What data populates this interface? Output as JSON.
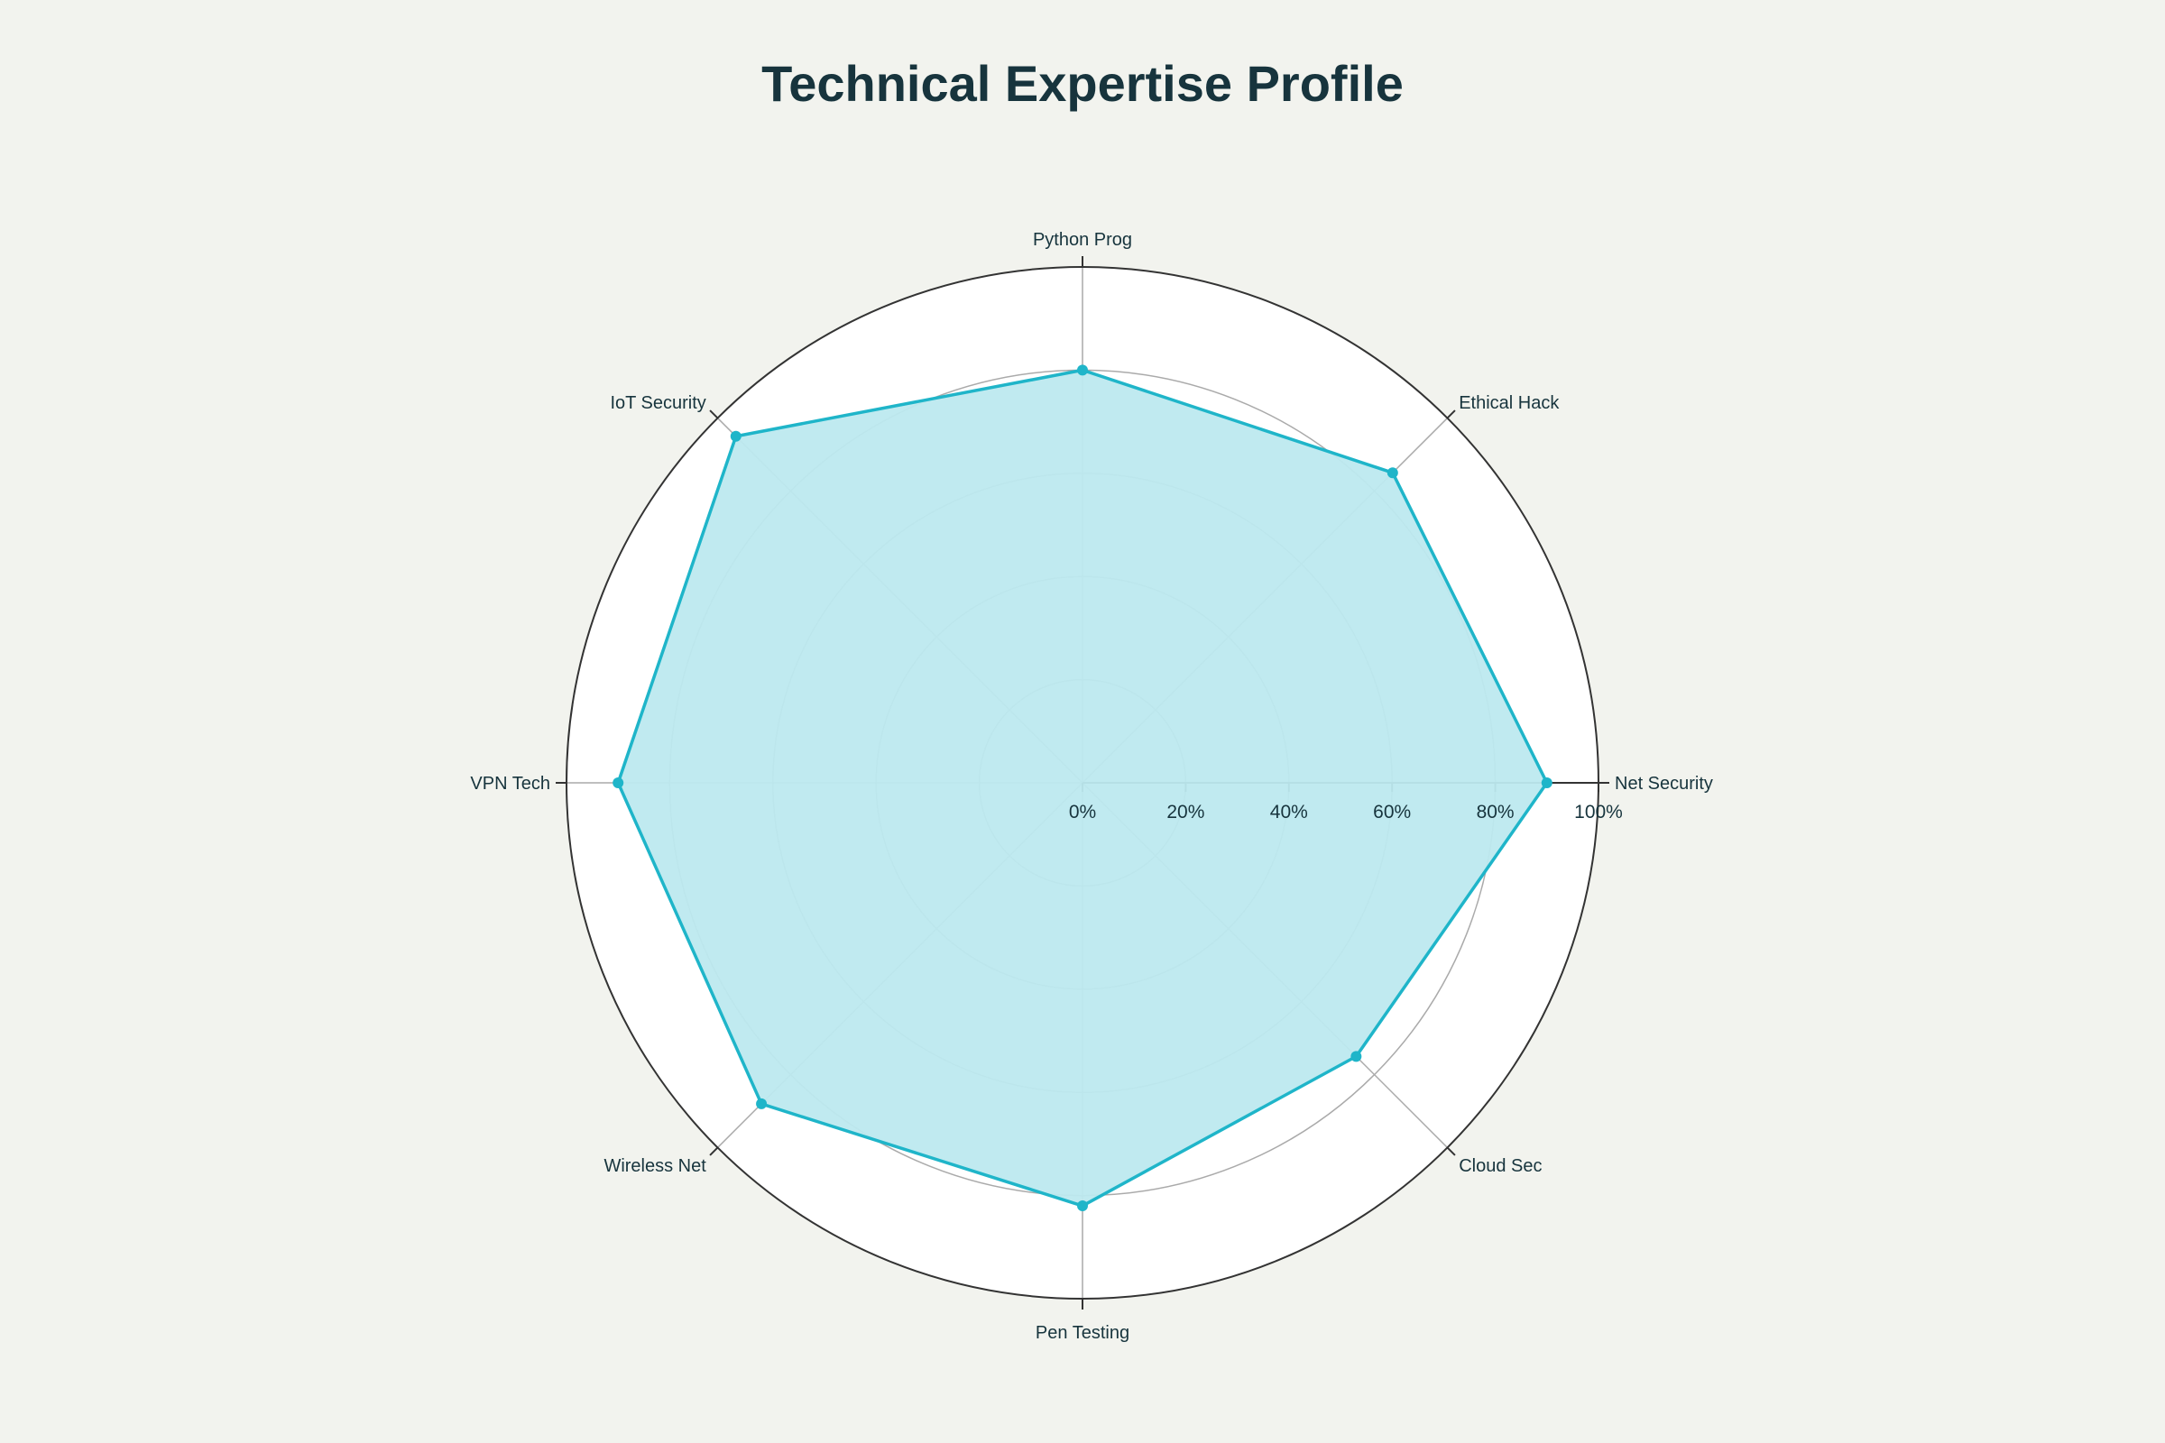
{
  "chart_data": {
    "type": "radar",
    "title": "Technical Expertise Profile",
    "categories": [
      "Net Security",
      "Ethical Hack",
      "Python Prog",
      "IoT Security",
      "VPN Tech",
      "Wireless Net",
      "Pen Testing",
      "Cloud Sec"
    ],
    "series": [
      {
        "values": [
          90,
          85,
          80,
          95,
          90,
          88,
          82,
          75
        ]
      }
    ],
    "radial_range": [
      0,
      100
    ],
    "radial_ticks": [
      0,
      20,
      40,
      60,
      80,
      100
    ],
    "tick_labels": [
      "0%",
      "20%",
      "40%",
      "60%",
      "80%",
      "100%"
    ],
    "grid": true,
    "legend": "none"
  },
  "colors": {
    "background": "#f2f3ee",
    "plot_background": "#ffffff",
    "series_line": "#1fb5c9",
    "series_fill": "#bde9ef",
    "grid": "#aaaaaa",
    "outer_ring": "#333333",
    "text": "#17343d"
  }
}
